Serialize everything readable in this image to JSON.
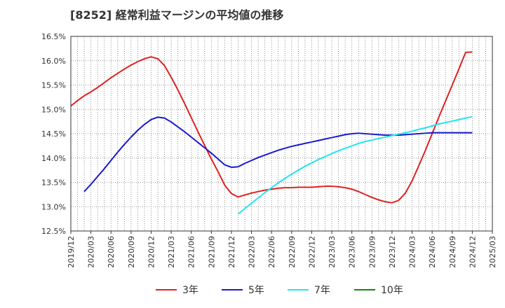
{
  "chart_data": {
    "type": "line",
    "title": "[8252]  経常利益マージンの平均値の推移",
    "xlabel": "",
    "ylabel": "",
    "ylim": [
      12.5,
      16.5
    ],
    "yticks": [
      "12.5%",
      "13.0%",
      "13.5%",
      "14.0%",
      "14.5%",
      "15.0%",
      "15.5%",
      "16.0%",
      "16.5%"
    ],
    "ytick_values": [
      12.5,
      13.0,
      13.5,
      14.0,
      14.5,
      15.0,
      15.5,
      16.0,
      16.5
    ],
    "xticks": [
      "2019/12",
      "2020/03",
      "2020/06",
      "2020/09",
      "2020/12",
      "2021/03",
      "2021/06",
      "2021/09",
      "2021/12",
      "2022/03",
      "2022/06",
      "2022/09",
      "2022/12",
      "2023/03",
      "2023/06",
      "2023/09",
      "2023/12",
      "2024/03",
      "2024/06",
      "2024/09",
      "2024/12",
      "2025/03"
    ],
    "grid": true,
    "legend_position": "bottom",
    "series": [
      {
        "name": "3年",
        "color": "#dd2222",
        "points": [
          [
            "2019/12",
            15.07
          ],
          [
            "2020/01",
            15.18
          ],
          [
            "2020/02",
            15.28
          ],
          [
            "2020/03",
            15.36
          ],
          [
            "2020/04",
            15.45
          ],
          [
            "2020/05",
            15.55
          ],
          [
            "2020/06",
            15.65
          ],
          [
            "2020/07",
            15.74
          ],
          [
            "2020/08",
            15.83
          ],
          [
            "2020/09",
            15.91
          ],
          [
            "2020/10",
            15.98
          ],
          [
            "2020/11",
            16.04
          ],
          [
            "2020/12",
            16.08
          ],
          [
            "2021/01",
            16.04
          ],
          [
            "2021/02",
            15.9
          ],
          [
            "2021/03",
            15.66
          ],
          [
            "2021/04",
            15.4
          ],
          [
            "2021/05",
            15.12
          ],
          [
            "2021/06",
            14.83
          ],
          [
            "2021/07",
            14.54
          ],
          [
            "2021/08",
            14.26
          ],
          [
            "2021/09",
            13.98
          ],
          [
            "2021/10",
            13.72
          ],
          [
            "2021/11",
            13.44
          ],
          [
            "2021/12",
            13.27
          ],
          [
            "2022/01",
            13.2
          ],
          [
            "2022/02",
            13.24
          ],
          [
            "2022/03",
            13.28
          ],
          [
            "2022/04",
            13.31
          ],
          [
            "2022/05",
            13.34
          ],
          [
            "2022/06",
            13.36
          ],
          [
            "2022/07",
            13.38
          ],
          [
            "2022/08",
            13.39
          ],
          [
            "2022/09",
            13.39
          ],
          [
            "2022/10",
            13.4
          ],
          [
            "2022/11",
            13.4
          ],
          [
            "2022/12",
            13.4
          ],
          [
            "2023/01",
            13.41
          ],
          [
            "2023/02",
            13.42
          ],
          [
            "2023/03",
            13.42
          ],
          [
            "2023/04",
            13.41
          ],
          [
            "2023/05",
            13.39
          ],
          [
            "2023/06",
            13.36
          ],
          [
            "2023/07",
            13.31
          ],
          [
            "2023/08",
            13.25
          ],
          [
            "2023/09",
            13.19
          ],
          [
            "2023/10",
            13.14
          ],
          [
            "2023/11",
            13.1
          ],
          [
            "2023/12",
            13.08
          ],
          [
            "2024/01",
            13.13
          ],
          [
            "2024/02",
            13.28
          ],
          [
            "2024/03",
            13.53
          ],
          [
            "2024/04",
            13.84
          ],
          [
            "2024/05",
            14.16
          ],
          [
            "2024/06",
            14.5
          ],
          [
            "2024/07",
            14.84
          ],
          [
            "2024/08",
            15.17
          ],
          [
            "2024/09",
            15.5
          ],
          [
            "2024/10",
            15.83
          ],
          [
            "2024/11",
            16.17
          ],
          [
            "2024/12",
            16.18
          ]
        ]
      },
      {
        "name": "5年",
        "color": "#1a1acc",
        "points": [
          [
            "2020/02",
            13.31
          ],
          [
            "2020/03",
            13.46
          ],
          [
            "2020/04",
            13.62
          ],
          [
            "2020/05",
            13.78
          ],
          [
            "2020/06",
            13.95
          ],
          [
            "2020/07",
            14.12
          ],
          [
            "2020/08",
            14.28
          ],
          [
            "2020/09",
            14.43
          ],
          [
            "2020/10",
            14.57
          ],
          [
            "2020/11",
            14.69
          ],
          [
            "2020/12",
            14.79
          ],
          [
            "2021/01",
            14.84
          ],
          [
            "2021/02",
            14.82
          ],
          [
            "2021/03",
            14.74
          ],
          [
            "2021/04",
            14.64
          ],
          [
            "2021/05",
            14.54
          ],
          [
            "2021/06",
            14.43
          ],
          [
            "2021/07",
            14.32
          ],
          [
            "2021/08",
            14.21
          ],
          [
            "2021/09",
            14.1
          ],
          [
            "2021/10",
            13.98
          ],
          [
            "2021/11",
            13.86
          ],
          [
            "2021/12",
            13.81
          ],
          [
            "2022/01",
            13.82
          ],
          [
            "2022/02",
            13.89
          ],
          [
            "2022/03",
            13.95
          ],
          [
            "2022/04",
            14.01
          ],
          [
            "2022/05",
            14.06
          ],
          [
            "2022/06",
            14.11
          ],
          [
            "2022/07",
            14.16
          ],
          [
            "2022/08",
            14.2
          ],
          [
            "2022/09",
            14.24
          ],
          [
            "2022/10",
            14.27
          ],
          [
            "2022/11",
            14.3
          ],
          [
            "2022/12",
            14.33
          ],
          [
            "2023/01",
            14.36
          ],
          [
            "2023/02",
            14.39
          ],
          [
            "2023/03",
            14.42
          ],
          [
            "2023/04",
            14.45
          ],
          [
            "2023/05",
            14.48
          ],
          [
            "2023/06",
            14.5
          ],
          [
            "2023/07",
            14.51
          ],
          [
            "2023/08",
            14.5
          ],
          [
            "2023/09",
            14.49
          ],
          [
            "2023/10",
            14.48
          ],
          [
            "2023/11",
            14.47
          ],
          [
            "2023/12",
            14.47
          ],
          [
            "2024/01",
            14.47
          ],
          [
            "2024/02",
            14.48
          ],
          [
            "2024/03",
            14.49
          ],
          [
            "2024/04",
            14.5
          ],
          [
            "2024/05",
            14.51
          ],
          [
            "2024/06",
            14.52
          ],
          [
            "2024/07",
            14.52
          ],
          [
            "2024/08",
            14.52
          ],
          [
            "2024/09",
            14.52
          ],
          [
            "2024/10",
            14.52
          ],
          [
            "2024/11",
            14.52
          ],
          [
            "2024/12",
            14.52
          ]
        ]
      },
      {
        "name": "7年",
        "color": "#22e5ee",
        "points": [
          [
            "2022/01",
            12.85
          ],
          [
            "2022/02",
            12.96
          ],
          [
            "2022/03",
            13.07
          ],
          [
            "2022/04",
            13.18
          ],
          [
            "2022/05",
            13.29
          ],
          [
            "2022/06",
            13.39
          ],
          [
            "2022/07",
            13.49
          ],
          [
            "2022/08",
            13.58
          ],
          [
            "2022/09",
            13.67
          ],
          [
            "2022/10",
            13.75
          ],
          [
            "2022/11",
            13.83
          ],
          [
            "2022/12",
            13.9
          ],
          [
            "2023/01",
            13.97
          ],
          [
            "2023/02",
            14.03
          ],
          [
            "2023/03",
            14.09
          ],
          [
            "2023/04",
            14.15
          ],
          [
            "2023/05",
            14.2
          ],
          [
            "2023/06",
            14.25
          ],
          [
            "2023/07",
            14.3
          ],
          [
            "2023/08",
            14.34
          ],
          [
            "2023/09",
            14.37
          ],
          [
            "2023/10",
            14.4
          ],
          [
            "2023/11",
            14.43
          ],
          [
            "2023/12",
            14.46
          ],
          [
            "2024/01",
            14.49
          ],
          [
            "2024/02",
            14.52
          ],
          [
            "2024/03",
            14.55
          ],
          [
            "2024/04",
            14.59
          ],
          [
            "2024/05",
            14.62
          ],
          [
            "2024/06",
            14.66
          ],
          [
            "2024/07",
            14.7
          ],
          [
            "2024/08",
            14.73
          ],
          [
            "2024/09",
            14.76
          ],
          [
            "2024/10",
            14.79
          ],
          [
            "2024/11",
            14.82
          ],
          [
            "2024/12",
            14.85
          ]
        ]
      },
      {
        "name": "10年",
        "color": "#118811",
        "points": []
      }
    ]
  }
}
